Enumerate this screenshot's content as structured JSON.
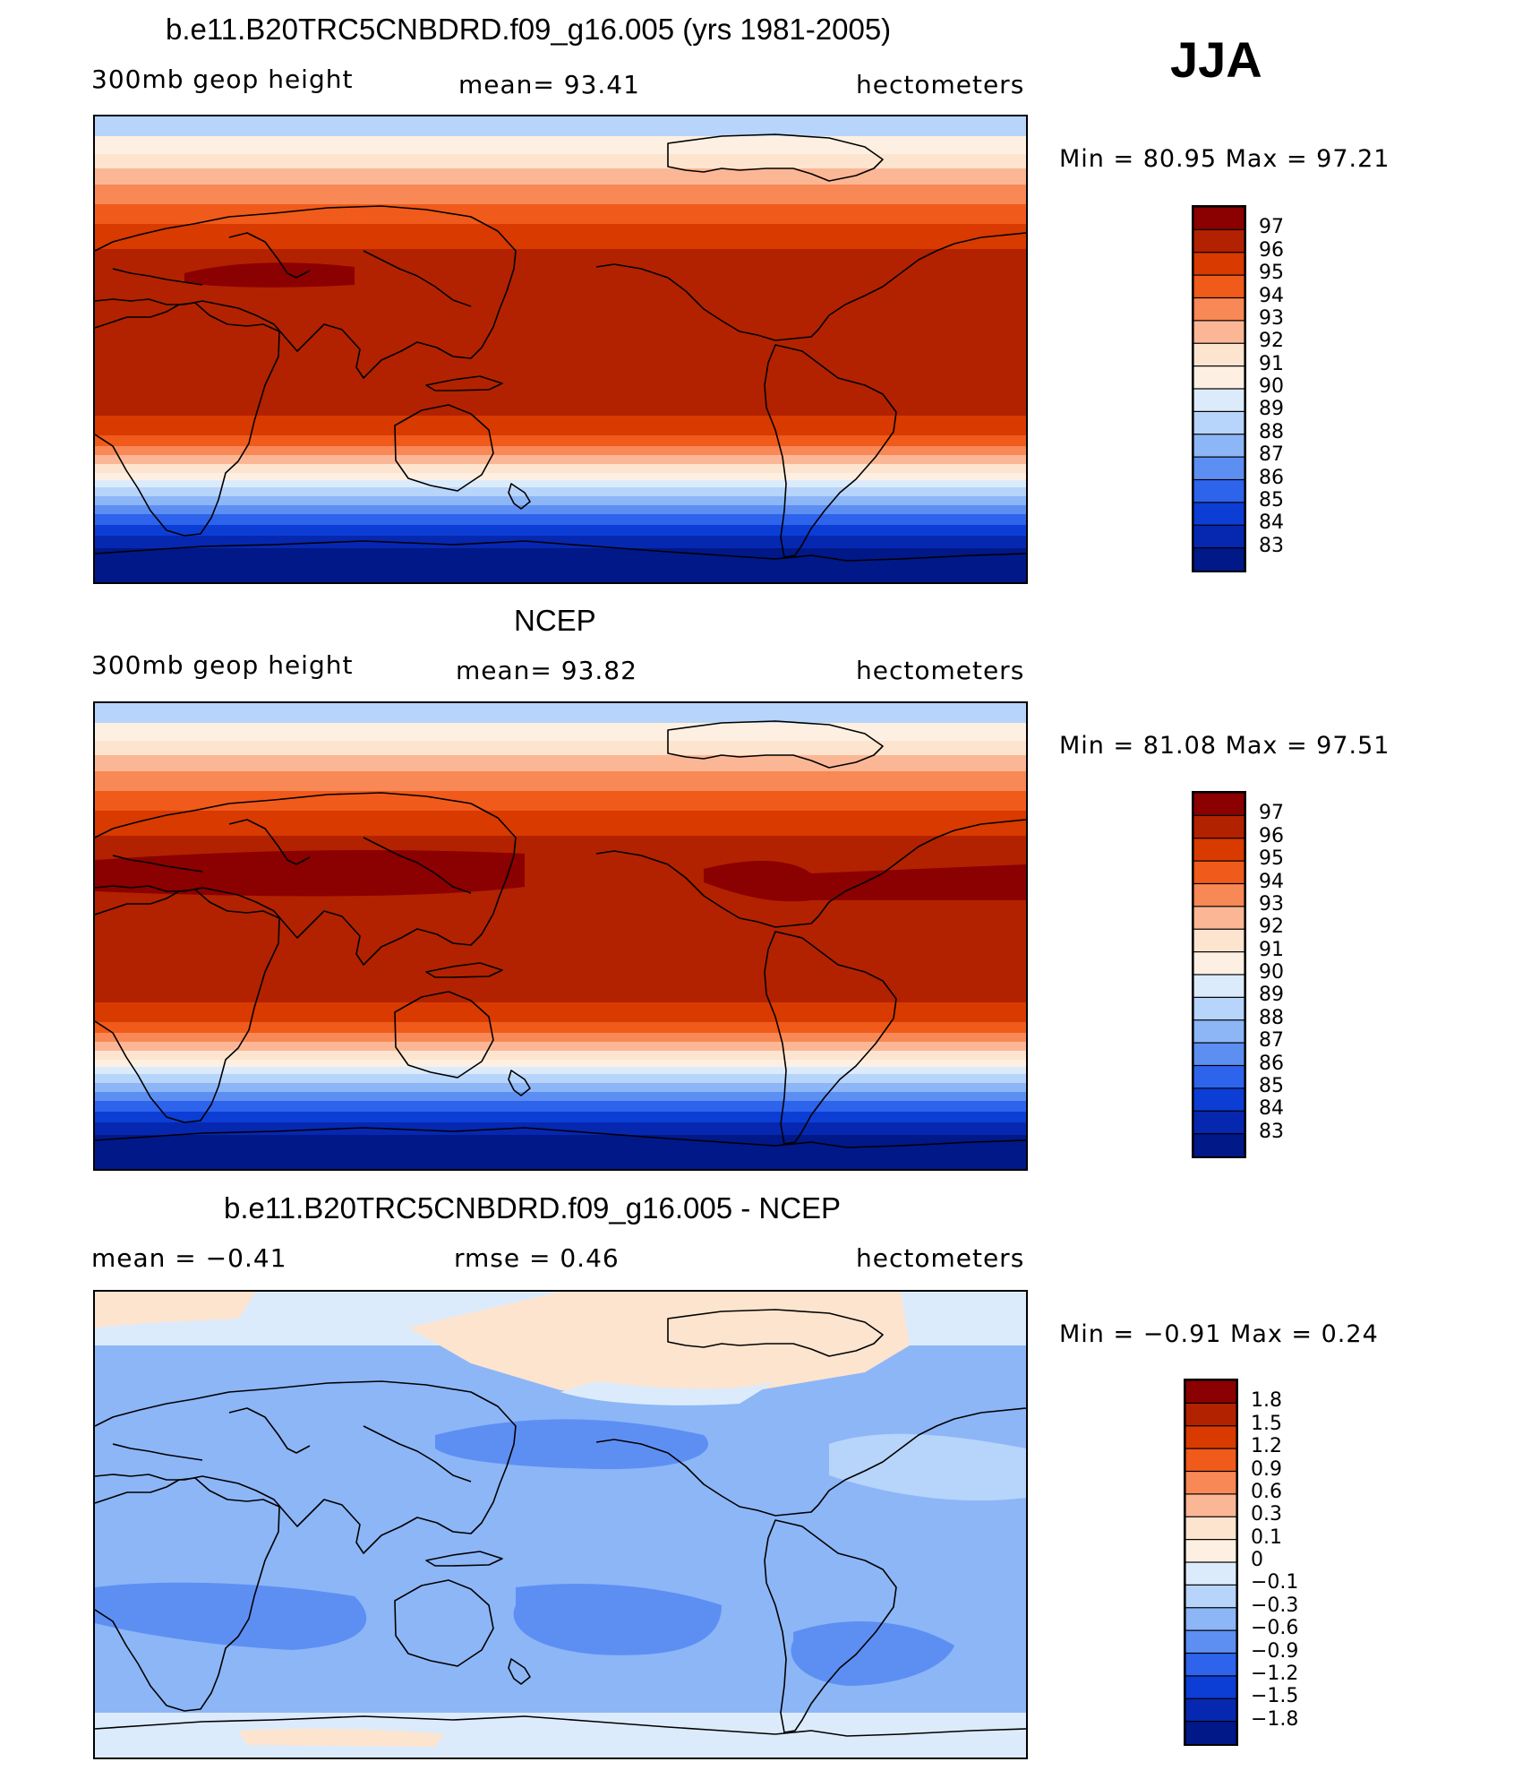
{
  "season": "JJA",
  "panels": [
    {
      "title": "b.e11.B20TRC5CNBDRD.f09_g16.005 (yrs 1981-2005)",
      "left_text": "300mb geop height",
      "center_text": "mean=   93.41",
      "right_text": "hectometers",
      "minmax_text": "Min =   80.95 Max =   97.21",
      "map": "model-geopotential-height",
      "colorbar_labels": [
        "97",
        "96",
        "95",
        "94",
        "93",
        "92",
        "91",
        "90",
        "89",
        "88",
        "87",
        "86",
        "85",
        "84",
        "83"
      ]
    },
    {
      "title": "NCEP",
      "left_text": "300mb geop height",
      "center_text": "mean=   93.82",
      "right_text": "hectometers",
      "minmax_text": "Min =   81.08 Max =   97.51",
      "map": "ncep-geopotential-height",
      "colorbar_labels": [
        "97",
        "96",
        "95",
        "94",
        "93",
        "92",
        "91",
        "90",
        "89",
        "88",
        "87",
        "86",
        "85",
        "84",
        "83"
      ]
    },
    {
      "title": "b.e11.B20TRC5CNBDRD.f09_g16.005 - NCEP",
      "left_text": "mean =   −0.41",
      "center_text": "rmse =    0.46",
      "right_text": "hectometers",
      "minmax_text": "Min =   −0.91  Max =    0.24",
      "map": "difference-model-minus-ncep",
      "colorbar_labels": [
        "1.8",
        "1.5",
        "1.2",
        "0.9",
        "0.6",
        "0.3",
        "0.1",
        "0",
        "−0.1",
        "−0.3",
        "−0.6",
        "−0.9",
        "−1.2",
        "−1.5",
        "−1.8"
      ]
    }
  ],
  "colors": {
    "colorbar": [
      "#8b0000",
      "#b22200",
      "#d83a00",
      "#f05a1a",
      "#f88855",
      "#fbb795",
      "#fde4cf",
      "#fdf0e2",
      "#dcebfb",
      "#b7d4fa",
      "#8db6f7",
      "#5d8ff3",
      "#2e63ec",
      "#0c3ed5",
      "#0627b0",
      "#001888"
    ],
    "coastline": "#000000"
  }
}
